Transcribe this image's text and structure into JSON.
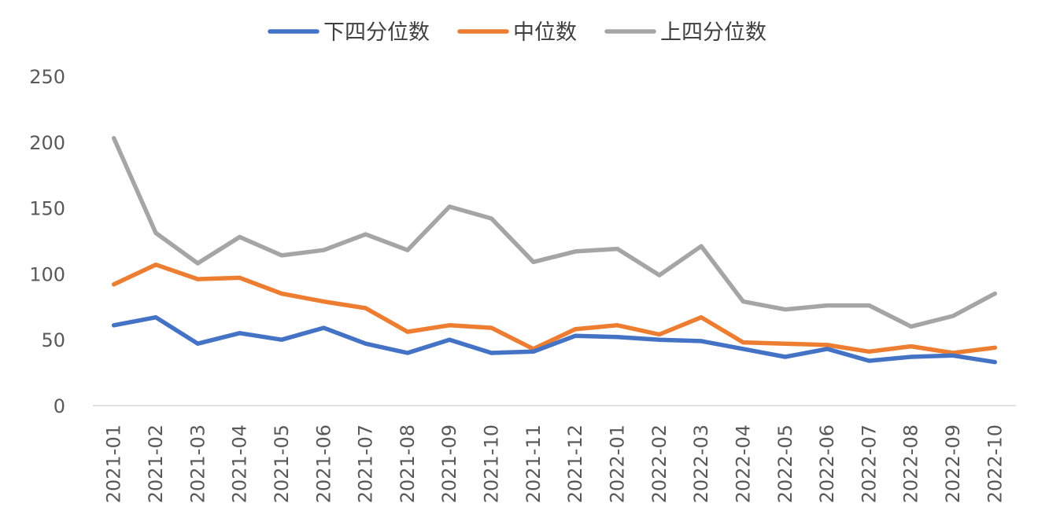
{
  "chart_data": {
    "type": "line",
    "title": "",
    "xlabel": "",
    "ylabel": "",
    "ylim": [
      0,
      250
    ],
    "yticks": [
      0,
      50,
      100,
      150,
      200,
      250
    ],
    "grid": false,
    "legend_position": "top-center",
    "categories": [
      "2021-01",
      "2021-02",
      "2021-03",
      "2021-04",
      "2021-05",
      "2021-06",
      "2021-07",
      "2021-08",
      "2021-09",
      "2021-10",
      "2021-11",
      "2021-12",
      "2022-01",
      "2022-02",
      "2022-03",
      "2022-04",
      "2022-05",
      "2022-06",
      "2022-07",
      "2022-08",
      "2022-09",
      "2022-10"
    ],
    "series": [
      {
        "name": "下四分位数",
        "color": "#4472C4",
        "values": [
          61,
          67,
          47,
          55,
          50,
          59,
          47,
          40,
          50,
          40,
          41,
          53,
          52,
          50,
          49,
          43,
          37,
          43,
          34,
          37,
          38,
          33
        ]
      },
      {
        "name": "中位数",
        "color": "#ED7D31",
        "values": [
          92,
          107,
          96,
          97,
          85,
          79,
          74,
          56,
          61,
          59,
          43,
          58,
          61,
          54,
          67,
          48,
          47,
          46,
          41,
          45,
          40,
          44
        ]
      },
      {
        "name": "上四分位数",
        "color": "#A5A5A5",
        "values": [
          203,
          131,
          108,
          128,
          114,
          118,
          130,
          118,
          151,
          142,
          109,
          117,
          119,
          99,
          121,
          79,
          73,
          76,
          76,
          60,
          68,
          85
        ]
      }
    ]
  }
}
